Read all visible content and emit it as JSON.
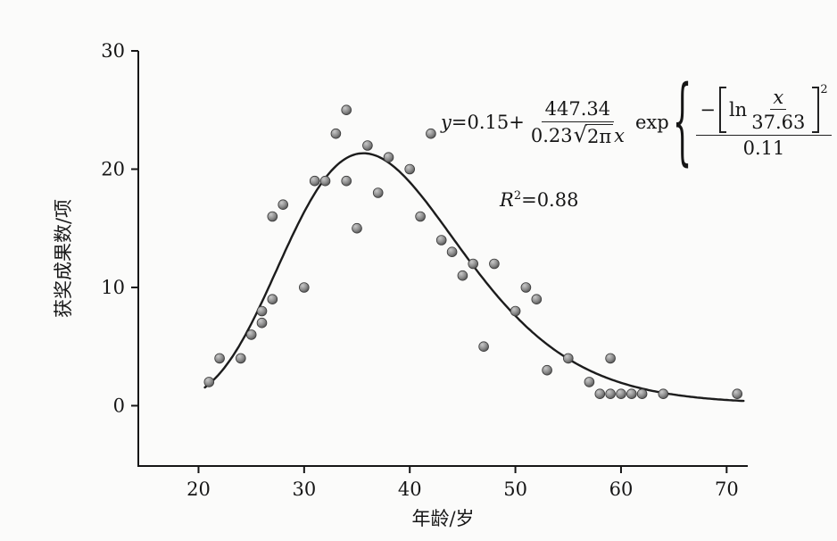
{
  "equation": {
    "lhs_y": "y",
    "lhs_rest": "=0.15+",
    "frac1_num": "447.34",
    "frac1_den_coef": "0.23",
    "radical": "√",
    "sqrt_arg": "2π",
    "frac1_den_var": "x",
    "exp": "exp",
    "lbrace": "{",
    "rbrace": "}",
    "minus": "−",
    "ln": "ln",
    "inner_num": "x",
    "inner_den": "37.63",
    "bracket_sup": "2",
    "frac2_den": "0.11"
  },
  "r_squared_label": {
    "base": "R",
    "sup": "2",
    "rest": "=0.88"
  },
  "chart_data": {
    "type": "scatter",
    "title": "",
    "xlabel": "年龄/岁",
    "ylabel": "获奖成果数/项",
    "xlim": [
      14.3,
      72
    ],
    "ylim": [
      -5.1,
      30
    ],
    "x_ticks": [
      20,
      30,
      40,
      50,
      60,
      70
    ],
    "y_ticks": [
      0,
      10,
      20,
      30
    ],
    "grid": false,
    "legend": "none",
    "points": [
      [
        21,
        2
      ],
      [
        22,
        4
      ],
      [
        24,
        4
      ],
      [
        25,
        6
      ],
      [
        26,
        7
      ],
      [
        26,
        8
      ],
      [
        27,
        9
      ],
      [
        27,
        16
      ],
      [
        28,
        17
      ],
      [
        30,
        10
      ],
      [
        31,
        19
      ],
      [
        32,
        19
      ],
      [
        33,
        23
      ],
      [
        34,
        25
      ],
      [
        34,
        19
      ],
      [
        35,
        15
      ],
      [
        36,
        22
      ],
      [
        37,
        18
      ],
      [
        38,
        21
      ],
      [
        40,
        20
      ],
      [
        41,
        16
      ],
      [
        42,
        23
      ],
      [
        43,
        14
      ],
      [
        44,
        13
      ],
      [
        45,
        11
      ],
      [
        46,
        12
      ],
      [
        47,
        5
      ],
      [
        48,
        12
      ],
      [
        50,
        8
      ],
      [
        51,
        10
      ],
      [
        52,
        9
      ],
      [
        53,
        3
      ],
      [
        55,
        4
      ],
      [
        57,
        2
      ],
      [
        58,
        1
      ],
      [
        59,
        4
      ],
      [
        59,
        1
      ],
      [
        60,
        1
      ],
      [
        61,
        1
      ],
      [
        62,
        1
      ],
      [
        64,
        1
      ],
      [
        71,
        1
      ]
    ],
    "fit_curve": {
      "type": "lognormal",
      "formula": "y=0.15+447.34/(0.23·√(2π)·x)·exp{−[ln(x/37.63)]²/0.11}",
      "params": {
        "offset": 0.15,
        "amplitude": 447.34,
        "sigma": 0.23,
        "mu": 37.63,
        "two_sigma_sq": 0.11
      },
      "x_range": [
        20.6,
        71.6
      ]
    },
    "r_squared": 0.88
  }
}
